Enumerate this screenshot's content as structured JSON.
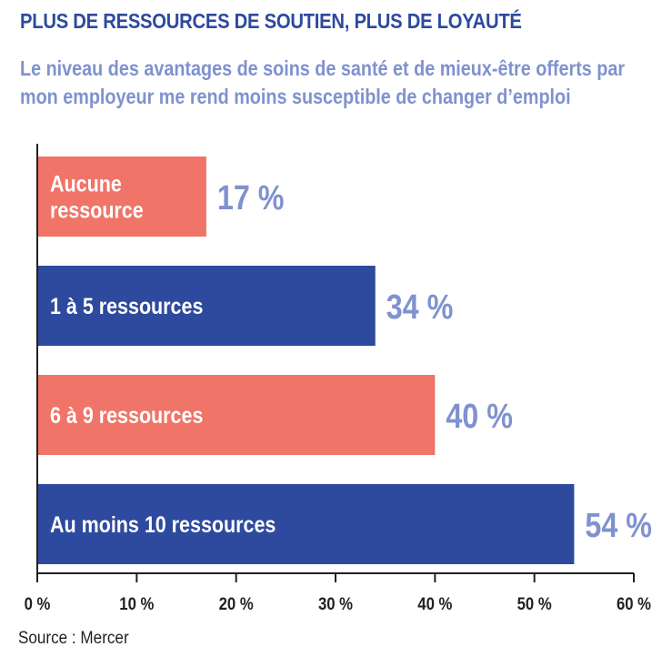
{
  "header": {
    "title": "PLUS DE RESSOURCES DE SOUTIEN, PLUS DE LOYAUTÉ",
    "subtitle": "Le niveau des avantages de soins de santé et de mieux-être offerts par mon employeur me rend moins susceptible de changer d’emploi"
  },
  "footer": {
    "source": "Source : Mercer"
  },
  "colors": {
    "title": "#2e4a9e",
    "subtitle": "#7f92cf",
    "bar_salmon": "#f07468",
    "bar_navy": "#2e4a9e",
    "value_label": "#7f92cf",
    "bar_text": "#ffffff",
    "axis": "#231f20"
  },
  "chart_data": {
    "type": "bar",
    "orientation": "horizontal",
    "categories": [
      [
        "Aucune",
        "ressource"
      ],
      [
        "1 à 5 ressources"
      ],
      [
        "6 à 9 ressources"
      ],
      [
        "Au moins 10 ressources"
      ]
    ],
    "values": [
      17,
      34,
      40,
      54
    ],
    "value_labels": [
      "17 %",
      "34 %",
      "40 %",
      "54 %"
    ],
    "bar_colors": [
      "salmon",
      "navy",
      "salmon",
      "navy"
    ],
    "xlim": [
      0,
      60
    ],
    "ticks": [
      0,
      10,
      20,
      30,
      40,
      50,
      60
    ],
    "tick_labels": [
      "0 %",
      "10 %",
      "20 %",
      "30 %",
      "40 %",
      "50 %",
      "60 %"
    ],
    "grid": false,
    "legend": "none",
    "xlabel": "",
    "ylabel": ""
  }
}
